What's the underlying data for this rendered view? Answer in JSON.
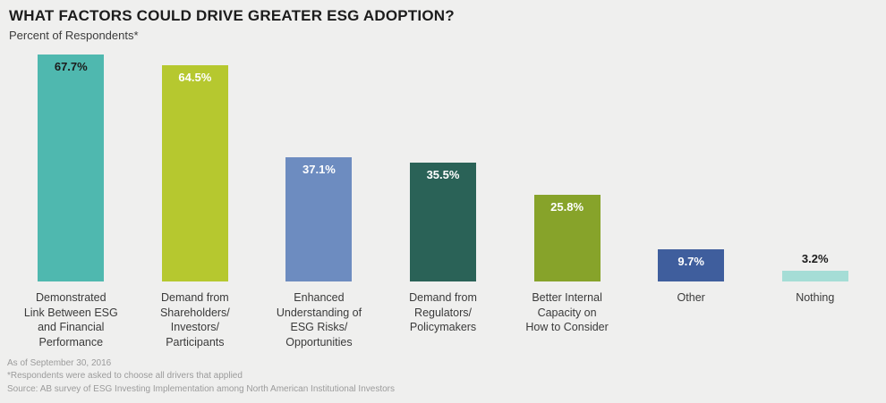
{
  "header": {
    "title": "WHAT FACTORS COULD DRIVE GREATER ESG ADOPTION?",
    "subtitle": "Percent of Respondents*"
  },
  "chart_data": {
    "type": "bar",
    "title": "WHAT FACTORS COULD DRIVE GREATER ESG ADOPTION?",
    "subtitle": "Percent of Respondents*",
    "ylabel": "Percent of Respondents",
    "ylim": [
      0,
      70
    ],
    "grid": false,
    "legend": "none",
    "categories": [
      "Demonstrated Link Between ESG and Financial Performance",
      "Demand from Shareholders/ Investors/ Participants",
      "Enhanced Understanding of ESG Risks/ Opportunities",
      "Demand from Regulators/ Policymakers",
      "Better Internal Capacity on How to Consider",
      "Other",
      "Nothing"
    ],
    "values": [
      67.7,
      64.5,
      37.1,
      35.5,
      25.8,
      9.7,
      3.2
    ],
    "bars": [
      {
        "label_lines": [
          "Demonstrated",
          "Link Between ESG",
          "and Financial",
          "Performance"
        ],
        "value": 67.7,
        "value_label": "67.7%",
        "color": "#4fb8af",
        "value_color": "#1b1b1b",
        "value_position": "inside"
      },
      {
        "label_lines": [
          "Demand from",
          "Shareholders/",
          "Investors/",
          "Participants"
        ],
        "value": 64.5,
        "value_label": "64.5%",
        "color": "#b6c82f",
        "value_color": "#ffffff",
        "value_position": "inside"
      },
      {
        "label_lines": [
          "Enhanced",
          "Understanding of",
          "ESG Risks/",
          "Opportunities"
        ],
        "value": 37.1,
        "value_label": "37.1%",
        "color": "#6d8cc0",
        "value_color": "#ffffff",
        "value_position": "inside"
      },
      {
        "label_lines": [
          "Demand from",
          "Regulators/",
          "Policymakers"
        ],
        "value": 35.5,
        "value_label": "35.5%",
        "color": "#2a6257",
        "value_color": "#ffffff",
        "value_position": "inside"
      },
      {
        "label_lines": [
          "Better Internal",
          "Capacity on",
          "How to Consider"
        ],
        "value": 25.8,
        "value_label": "25.8%",
        "color": "#87a32a",
        "value_color": "#ffffff",
        "value_position": "inside"
      },
      {
        "label_lines": [
          "Other"
        ],
        "value": 9.7,
        "value_label": "9.7%",
        "color": "#3f5e9d",
        "value_color": "#ffffff",
        "value_position": "inside"
      },
      {
        "label_lines": [
          "Nothing"
        ],
        "value": 3.2,
        "value_label": "3.2%",
        "color": "#a5ddd6",
        "value_color": "#1b1b1b",
        "value_position": "above"
      }
    ]
  },
  "footer": {
    "line1": "As of September 30, 2016",
    "line2": "*Respondents were asked to choose all drivers that applied",
    "line3": "Source:  AB survey of ESG Investing Implementation among North American Institutional Investors"
  }
}
